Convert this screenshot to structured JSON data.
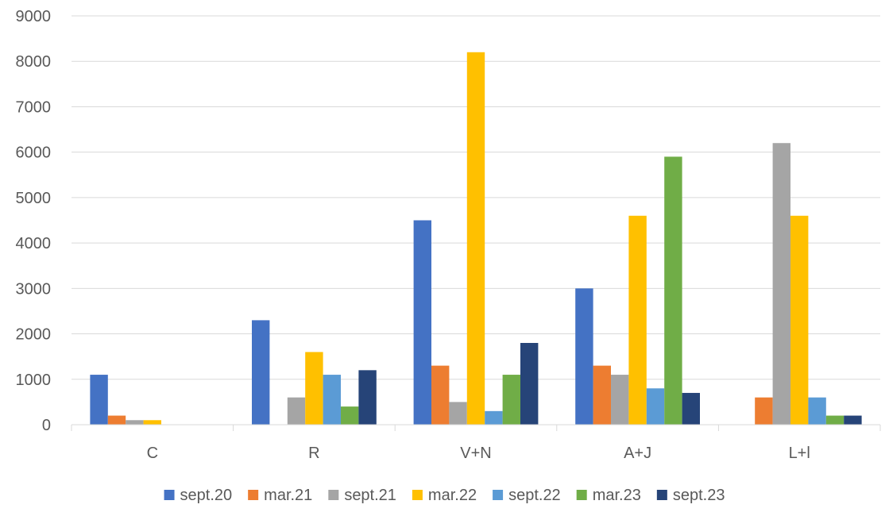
{
  "chart_data": {
    "type": "bar",
    "categories": [
      "C",
      "R",
      "V+N",
      "A+J",
      "L+l"
    ],
    "series": [
      {
        "name": "sept.20",
        "color": "#4472c4",
        "values": [
          1100,
          2300,
          4500,
          3000,
          0
        ]
      },
      {
        "name": "mar.21",
        "color": "#ed7d31",
        "values": [
          200,
          0,
          1300,
          1300,
          600
        ]
      },
      {
        "name": "sept.21",
        "color": "#a5a5a5",
        "values": [
          100,
          600,
          500,
          1100,
          6200
        ]
      },
      {
        "name": "mar.22",
        "color": "#ffc000",
        "values": [
          100,
          1600,
          8200,
          4600,
          4600
        ]
      },
      {
        "name": "sept.22",
        "color": "#5b9bd5",
        "values": [
          0,
          1100,
          300,
          800,
          600
        ]
      },
      {
        "name": "mar.23",
        "color": "#70ad47",
        "values": [
          0,
          400,
          1100,
          5900,
          200
        ]
      },
      {
        "name": "sept.23",
        "color": "#264478",
        "values": [
          0,
          1200,
          1800,
          700,
          200
        ]
      }
    ],
    "ylim": [
      0,
      9000
    ],
    "yticks": [
      "0",
      "1000",
      "2000",
      "3000",
      "4000",
      "5000",
      "6000",
      "7000",
      "8000",
      "9000"
    ],
    "grid": true,
    "legend": "bottom"
  }
}
